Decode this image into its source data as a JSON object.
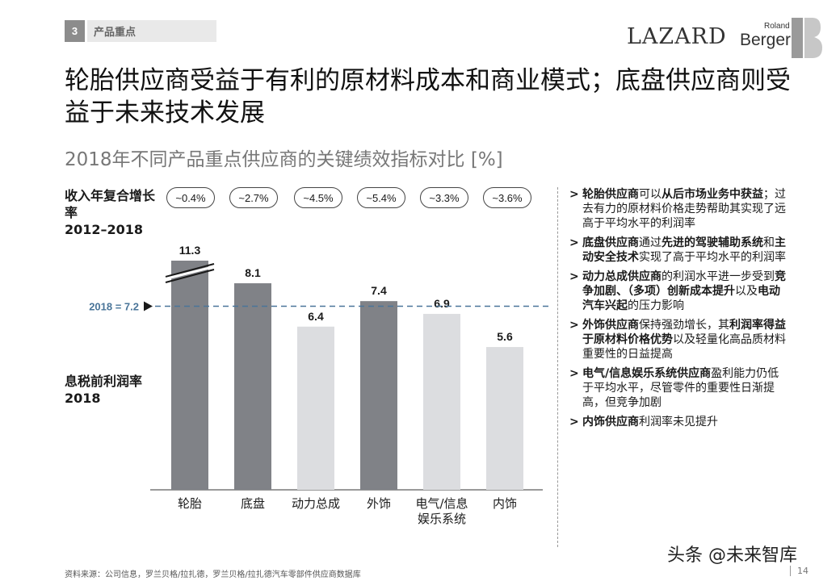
{
  "header": {
    "section_number": "3",
    "section_label": "产品重点",
    "logo_lazard": "LAZARD",
    "logo_rb_small": "Roland",
    "logo_rb": "Berger"
  },
  "title": "轮胎供应商受益于有利的原材料成本和商业模式；底盘供应商则受益于未来技术发展",
  "subtitle": "2018年不同产品重点供应商的关键绩效指标对比 [%]",
  "cagr_label": {
    "line1": "收入年复合增长率",
    "line2": "2012–2018"
  },
  "ebit_label": {
    "line1": "息税前利润率",
    "line2": "2018"
  },
  "cagr_values": [
    "~0.4%",
    "~2.7%",
    "~4.5%",
    "~5.4%",
    "~3.3%",
    "~3.6%"
  ],
  "chart_data": {
    "type": "bar",
    "categories": [
      "轮胎",
      "底盘",
      "动力总成",
      "外饰",
      "电气/信息娱乐系统",
      "内饰"
    ],
    "category_lines": [
      [
        "轮胎"
      ],
      [
        "底盘"
      ],
      [
        "动力总成"
      ],
      [
        "外饰"
      ],
      [
        "电气/信息",
        "娱乐系统"
      ],
      [
        "内饰"
      ]
    ],
    "values": [
      11.3,
      8.1,
      6.4,
      7.4,
      6.9,
      5.6
    ],
    "value_labels": [
      "11.3",
      "8.1",
      "6.4",
      "7.4",
      "6.9",
      "5.6"
    ],
    "above_average": [
      true,
      true,
      false,
      true,
      false,
      false
    ],
    "truncated_bar_index": 0,
    "reference_line": {
      "value": 7.2,
      "label": "2018 = 7.2"
    },
    "colors": {
      "above": "#808287",
      "below": "#dcdde0",
      "reference": "#4a7599"
    },
    "grid": false,
    "legend": "none"
  },
  "bullets": [
    [
      {
        "b": true,
        "t": "轮胎供应商"
      },
      {
        "b": false,
        "t": "可以"
      },
      {
        "b": true,
        "t": "从后市场业务中获益"
      },
      {
        "b": false,
        "t": "；过去有力的原材料价格走势帮助其实现了远高于平均水平的利润率"
      }
    ],
    [
      {
        "b": true,
        "t": "底盘供应商"
      },
      {
        "b": false,
        "t": "通过"
      },
      {
        "b": true,
        "t": "先进的驾驶辅助系统"
      },
      {
        "b": false,
        "t": "和"
      },
      {
        "b": true,
        "t": "主动安全技术"
      },
      {
        "b": false,
        "t": "实现了高于平均水平的利润率"
      }
    ],
    [
      {
        "b": true,
        "t": "动力总成供应商"
      },
      {
        "b": false,
        "t": "的利润水平进一步受到"
      },
      {
        "b": true,
        "t": "竞争加剧、（多项）创新成本提升"
      },
      {
        "b": false,
        "t": "以及"
      },
      {
        "b": true,
        "t": "电动汽车兴起"
      },
      {
        "b": false,
        "t": "的压力影响"
      }
    ],
    [
      {
        "b": true,
        "t": "外饰供应商"
      },
      {
        "b": false,
        "t": "保持强劲增长，其"
      },
      {
        "b": true,
        "t": "利润率得益于原材料价格优势"
      },
      {
        "b": false,
        "t": "以及轻量化高品质材料重要性的日益提高"
      }
    ],
    [
      {
        "b": true,
        "t": "电气/信息娱乐系统供应商"
      },
      {
        "b": false,
        "t": "盈利能力仍低于平均水平，尽管零件的重要性日渐提高，但竞争加剧"
      }
    ],
    [
      {
        "b": true,
        "t": "内饰供应商"
      },
      {
        "b": false,
        "t": "利润率未见提升"
      }
    ]
  ],
  "footer": {
    "source": "资料来源：公司信息，罗兰贝格/拉扎德，罗兰贝格/拉扎德汽车零部件供应商数据库",
    "page": "14",
    "watermark": "头条 @未来智库"
  }
}
